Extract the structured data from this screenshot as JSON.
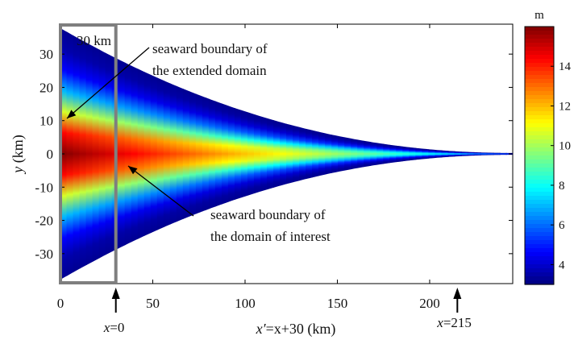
{
  "chart_data": {
    "type": "heatmap",
    "x": {
      "ticks": [
        0,
        50,
        100,
        150,
        200
      ],
      "range": [
        0,
        245
      ],
      "label_var": "x′",
      "label_rest": "=x+30 (km)"
    },
    "y": {
      "ticks": [
        30,
        20,
        10,
        0,
        -10,
        -20,
        -30
      ],
      "range": [
        -39,
        39
      ],
      "label_var": "y",
      "label_rest": " (km)"
    },
    "colorbar": {
      "unit": "m",
      "ticks": [
        14,
        12,
        10,
        8,
        6,
        4
      ],
      "range": [
        3,
        16
      ],
      "colormap": "jet"
    },
    "domain": {
      "half_width_at_x0_km": 37.5,
      "tip_x_km": 245,
      "peak_value_m": 16,
      "edge_value_m": 3
    },
    "annotations": {
      "box_label": "30 km",
      "extended_boundary": [
        "seaward boundary of",
        "the extended domain"
      ],
      "interest_boundary": [
        "seaward boundary of",
        "the domain of interest"
      ],
      "x0_var": "x",
      "x0_rest": "=0",
      "x215_var": "x",
      "x215_rest": "=215"
    },
    "box_x_range_km": [
      0,
      30
    ],
    "arrow_positions_km": [
      30,
      215
    ],
    "colors": {
      "box": "#7f7f7f",
      "axis": "#000000"
    }
  }
}
